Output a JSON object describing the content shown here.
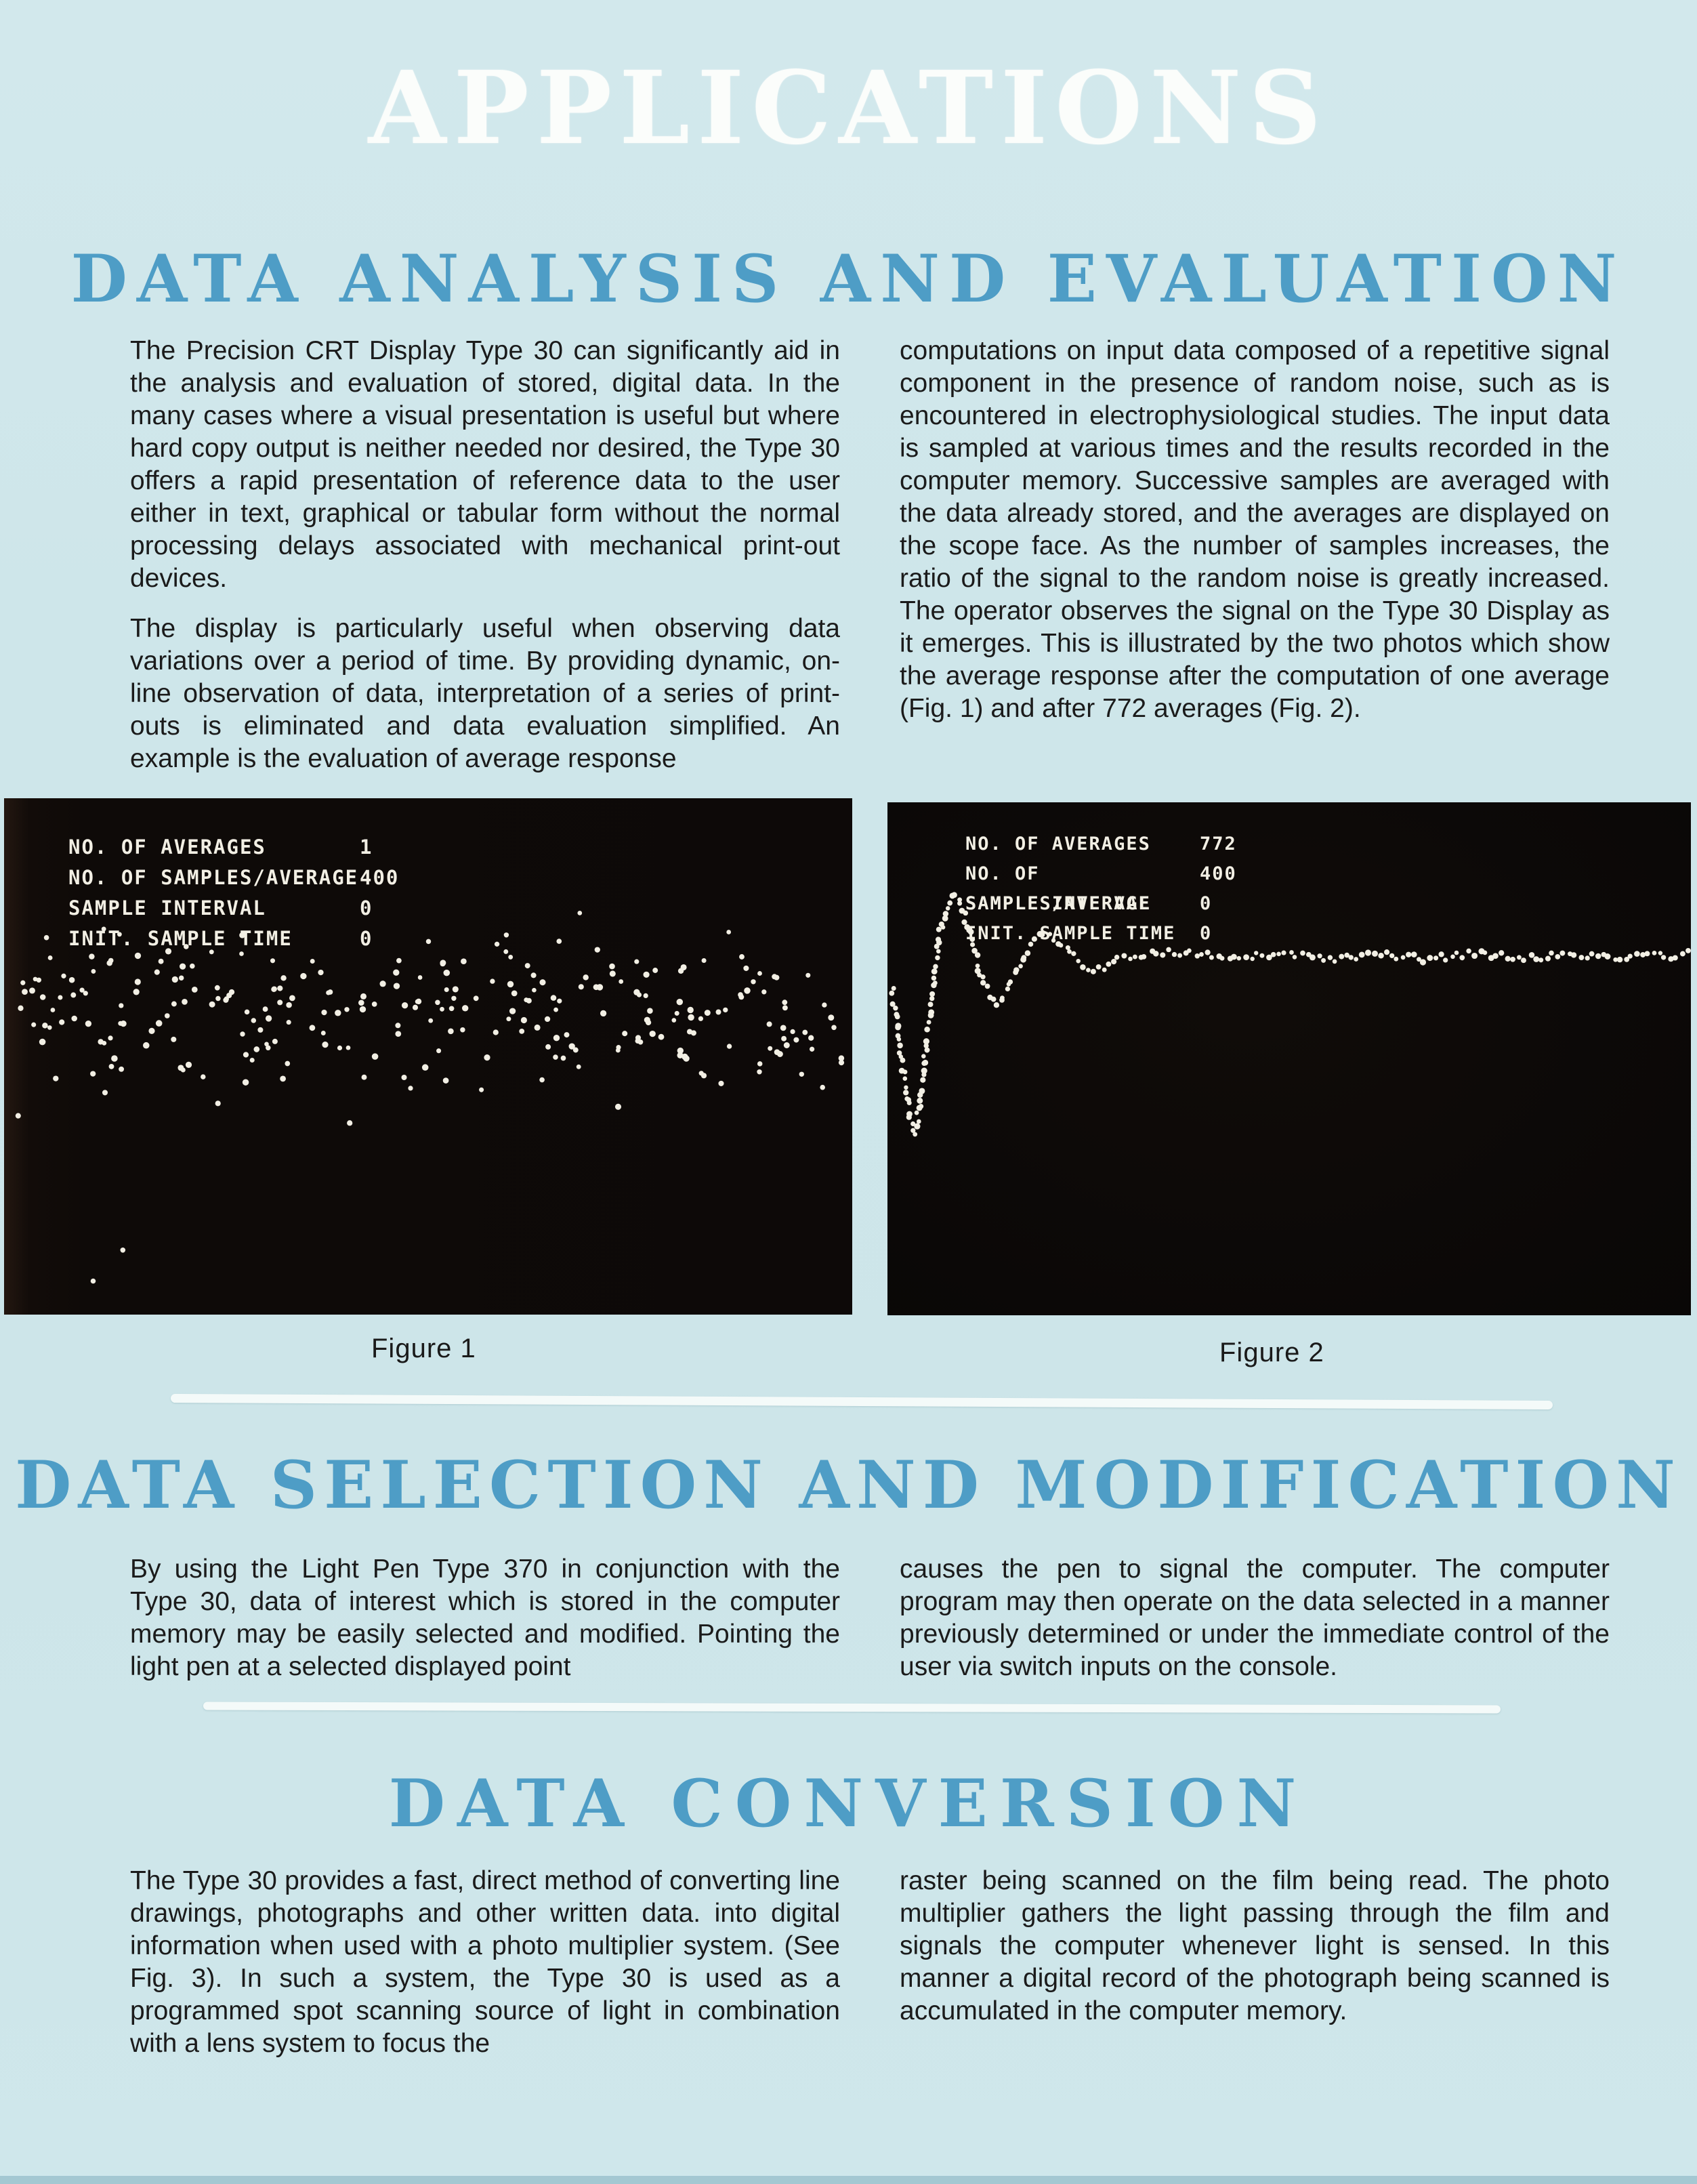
{
  "page": {
    "title": "APPLICATIONS",
    "background": "#cee6ea",
    "accent": "#4e9dc6",
    "ink": "#1b1b1b",
    "crt_ink": "#f2efe4",
    "panel": "#0e0a08"
  },
  "sections": [
    {
      "heading": "DATA ANALYSIS AND EVALUATION",
      "left": [
        "The Precision CRT Display Type 30 can significantly aid in the analysis and evaluation of stored, digital data. In the many cases where a visual presentation is useful but where hard copy output is neither needed nor desired, the Type 30 offers a rapid presentation of reference data to the user either in text, graphical or tabular form without the normal processing delays associated with mechanical print-out devices.",
        "The display is particularly useful when observing data variations over a period of time. By providing dynamic, on-line observation of data, interpretation of a series of print-outs is eliminated and data evaluation simplified. An example is the evaluation of average response"
      ],
      "right": [
        "computations on input data composed of a repetitive signal component in the presence of random noise, such as is encountered in electrophysiological studies. The input data is sampled at various times and the results recorded in the computer memory. Successive samples are averaged with the data already stored, and the averages are displayed on the scope face. As the number of samples increases, the ratio of the signal to the random noise is greatly increased. The operator observes the signal on the Type 30 Display as it emerges. This is illustrated by the two photos which show the average response after the computation of one average (Fig. 1) and after 772 averages (Fig. 2)."
      ]
    },
    {
      "heading": "DATA SELECTION AND MODIFICATION",
      "left": [
        "By using the Light Pen Type 370 in conjunction with the Type 30, data of interest which is stored in the computer memory may be easily selected and modified. Pointing the light pen at a selected displayed point"
      ],
      "right": [
        "causes the pen to signal the computer. The computer program may then operate on the data selected in a manner previously determined or under the immediate control of the user via switch inputs on the console."
      ]
    },
    {
      "heading": "DATA CONVERSION",
      "left": [
        "The Type 30 provides a fast, direct method of converting line drawings, photographs and other written data. into digital information when used with a photo multiplier system. (See Fig. 3). In such a system, the Type 30 is used as a programmed spot scanning source of light in combination with a lens system to focus the"
      ],
      "right": [
        "raster being scanned on the film being read. The photo multiplier gathers the light passing through the film and signals the computer whenever light is sensed. In this manner a digital record of the photograph being scanned is accumulated in the computer memory."
      ]
    }
  ],
  "figures": [
    {
      "caption": "Figure 1",
      "readout": [
        {
          "label": "NO. OF AVERAGES",
          "value": "1"
        },
        {
          "label": "NO. OF SAMPLES/AVERAGE",
          "value": "400"
        },
        {
          "label": "SAMPLE INTERVAL",
          "value": "0"
        },
        {
          "label": "INIT. SAMPLE TIME",
          "value": "0"
        }
      ],
      "plot": {
        "type": "scatter",
        "description": "random noise after one average",
        "seed": 20,
        "count": 270,
        "x_range": [
          0.015,
          0.99
        ],
        "y_center": 0.42,
        "y_spread": 0.075,
        "y_clamp": [
          0.21,
          0.66
        ],
        "outliers": [
          [
            0.14,
            0.875
          ],
          [
            0.105,
            0.935
          ],
          [
            0.05,
            0.27
          ],
          [
            0.965,
            0.56
          ]
        ]
      }
    },
    {
      "caption": "Figure 2",
      "readout": [
        {
          "label": "NO. OF AVERAGES",
          "value": "772"
        },
        {
          "label": "NO. OF SAMPLES/AVERAGE",
          "value": "400"
        },
        {
          "label": "SAMPLE INTERVAL",
          "value": "0"
        },
        {
          "label": "INIT. SAMPLE TIME",
          "value": "0"
        }
      ],
      "plot": {
        "type": "trace",
        "description": "damped oscillation emerging after 772 averages",
        "seed": 4,
        "count": 225,
        "jitter": 0.007,
        "curve": [
          [
            0.006,
            0.365
          ],
          [
            0.012,
            0.425
          ],
          [
            0.017,
            0.49
          ],
          [
            0.022,
            0.55
          ],
          [
            0.027,
            0.6
          ],
          [
            0.032,
            0.645
          ],
          [
            0.037,
            0.625
          ],
          [
            0.042,
            0.565
          ],
          [
            0.047,
            0.49
          ],
          [
            0.053,
            0.41
          ],
          [
            0.059,
            0.33
          ],
          [
            0.065,
            0.26
          ],
          [
            0.071,
            0.215
          ],
          [
            0.077,
            0.185
          ],
          [
            0.083,
            0.175
          ],
          [
            0.089,
            0.185
          ],
          [
            0.095,
            0.215
          ],
          [
            0.103,
            0.26
          ],
          [
            0.111,
            0.305
          ],
          [
            0.119,
            0.35
          ],
          [
            0.127,
            0.378
          ],
          [
            0.135,
            0.39
          ],
          [
            0.143,
            0.38
          ],
          [
            0.153,
            0.352
          ],
          [
            0.163,
            0.318
          ],
          [
            0.173,
            0.29
          ],
          [
            0.183,
            0.268
          ],
          [
            0.193,
            0.258
          ],
          [
            0.205,
            0.262
          ],
          [
            0.217,
            0.277
          ],
          [
            0.229,
            0.297
          ],
          [
            0.241,
            0.315
          ],
          [
            0.253,
            0.327
          ],
          [
            0.265,
            0.325
          ],
          [
            0.28,
            0.313
          ],
          [
            0.3,
            0.301
          ],
          [
            0.32,
            0.295
          ],
          [
            0.345,
            0.291
          ],
          [
            0.37,
            0.294
          ],
          [
            0.4,
            0.298
          ],
          [
            0.43,
            0.302
          ],
          [
            0.46,
            0.298
          ],
          [
            0.49,
            0.294
          ],
          [
            0.52,
            0.3
          ],
          [
            0.55,
            0.306
          ],
          [
            0.58,
            0.301
          ],
          [
            0.61,
            0.295
          ],
          [
            0.64,
            0.3
          ],
          [
            0.67,
            0.306
          ],
          [
            0.7,
            0.3
          ],
          [
            0.73,
            0.294
          ],
          [
            0.76,
            0.299
          ],
          [
            0.79,
            0.305
          ],
          [
            0.82,
            0.3
          ],
          [
            0.85,
            0.294
          ],
          [
            0.88,
            0.299
          ],
          [
            0.91,
            0.303
          ],
          [
            0.94,
            0.297
          ],
          [
            0.97,
            0.3
          ],
          [
            0.995,
            0.296
          ]
        ]
      }
    }
  ]
}
